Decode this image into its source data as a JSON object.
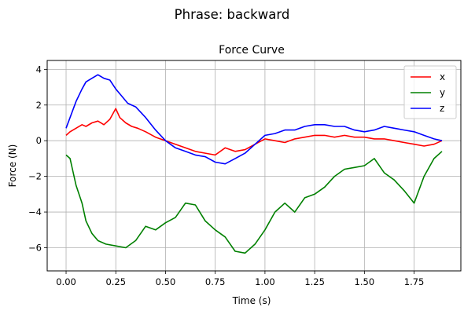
{
  "figure": {
    "suptitle": "Phrase: backward"
  },
  "chart_data": {
    "type": "line",
    "title": "Force Curve",
    "xlabel": "Time (s)",
    "ylabel": "Force (N)",
    "xlim": [
      -0.095,
      1.985
    ],
    "ylim": [
      -7.3,
      4.5
    ],
    "xticks": [
      0.0,
      0.25,
      0.5,
      0.75,
      1.0,
      1.25,
      1.5,
      1.75
    ],
    "xtick_labels": [
      "0.00",
      "0.25",
      "0.50",
      "0.75",
      "1.00",
      "1.25",
      "1.50",
      "1.75"
    ],
    "yticks": [
      -6,
      -4,
      -2,
      0,
      2,
      4
    ],
    "ytick_labels": [
      "−6",
      "−4",
      "−2",
      "0",
      "2",
      "4"
    ],
    "grid": true,
    "legend_position": "top-right",
    "series": [
      {
        "name": "x",
        "color": "#ff0000",
        "x": [
          0.0,
          0.02,
          0.05,
          0.08,
          0.1,
          0.13,
          0.16,
          0.19,
          0.22,
          0.25,
          0.27,
          0.3,
          0.33,
          0.36,
          0.4,
          0.45,
          0.5,
          0.55,
          0.6,
          0.65,
          0.7,
          0.75,
          0.8,
          0.85,
          0.9,
          0.95,
          1.0,
          1.05,
          1.1,
          1.15,
          1.2,
          1.25,
          1.3,
          1.35,
          1.4,
          1.45,
          1.5,
          1.55,
          1.6,
          1.65,
          1.7,
          1.75,
          1.8,
          1.85,
          1.89
        ],
        "y": [
          0.3,
          0.5,
          0.7,
          0.9,
          0.8,
          1.0,
          1.1,
          0.9,
          1.2,
          1.8,
          1.3,
          1.0,
          0.8,
          0.7,
          0.5,
          0.2,
          0.0,
          -0.2,
          -0.4,
          -0.6,
          -0.7,
          -0.8,
          -0.4,
          -0.6,
          -0.5,
          -0.2,
          0.1,
          0.0,
          -0.1,
          0.1,
          0.2,
          0.3,
          0.3,
          0.2,
          0.3,
          0.2,
          0.2,
          0.1,
          0.1,
          0.0,
          -0.1,
          -0.2,
          -0.3,
          -0.2,
          0.0
        ]
      },
      {
        "name": "y",
        "color": "#008000",
        "x": [
          0.0,
          0.02,
          0.05,
          0.08,
          0.1,
          0.13,
          0.16,
          0.2,
          0.25,
          0.3,
          0.35,
          0.4,
          0.45,
          0.5,
          0.55,
          0.6,
          0.65,
          0.7,
          0.75,
          0.8,
          0.85,
          0.9,
          0.95,
          1.0,
          1.05,
          1.1,
          1.15,
          1.2,
          1.25,
          1.3,
          1.35,
          1.4,
          1.45,
          1.5,
          1.55,
          1.6,
          1.65,
          1.7,
          1.75,
          1.8,
          1.85,
          1.89
        ],
        "y": [
          -0.8,
          -1.0,
          -2.5,
          -3.5,
          -4.5,
          -5.2,
          -5.6,
          -5.8,
          -5.9,
          -6.0,
          -5.6,
          -4.8,
          -5.0,
          -4.6,
          -4.3,
          -3.5,
          -3.6,
          -4.5,
          -5.0,
          -5.4,
          -6.2,
          -6.3,
          -5.8,
          -5.0,
          -4.0,
          -3.5,
          -4.0,
          -3.2,
          -3.0,
          -2.6,
          -2.0,
          -1.6,
          -1.5,
          -1.4,
          -1.0,
          -1.8,
          -2.2,
          -2.8,
          -3.5,
          -2.0,
          -1.0,
          -0.6
        ]
      },
      {
        "name": "z",
        "color": "#0000ff",
        "x": [
          0.0,
          0.02,
          0.05,
          0.08,
          0.1,
          0.13,
          0.16,
          0.19,
          0.22,
          0.25,
          0.28,
          0.31,
          0.35,
          0.4,
          0.45,
          0.5,
          0.55,
          0.6,
          0.65,
          0.7,
          0.75,
          0.8,
          0.85,
          0.9,
          0.95,
          1.0,
          1.05,
          1.1,
          1.15,
          1.2,
          1.25,
          1.3,
          1.35,
          1.4,
          1.45,
          1.5,
          1.55,
          1.6,
          1.65,
          1.7,
          1.75,
          1.8,
          1.85,
          1.89
        ],
        "y": [
          0.7,
          1.3,
          2.2,
          2.9,
          3.3,
          3.5,
          3.7,
          3.5,
          3.4,
          2.9,
          2.5,
          2.1,
          1.9,
          1.3,
          0.6,
          0.0,
          -0.4,
          -0.6,
          -0.8,
          -0.9,
          -1.2,
          -1.3,
          -1.0,
          -0.7,
          -0.2,
          0.3,
          0.4,
          0.6,
          0.6,
          0.8,
          0.9,
          0.9,
          0.8,
          0.8,
          0.6,
          0.5,
          0.6,
          0.8,
          0.7,
          0.6,
          0.5,
          0.3,
          0.1,
          0.0
        ]
      }
    ]
  }
}
